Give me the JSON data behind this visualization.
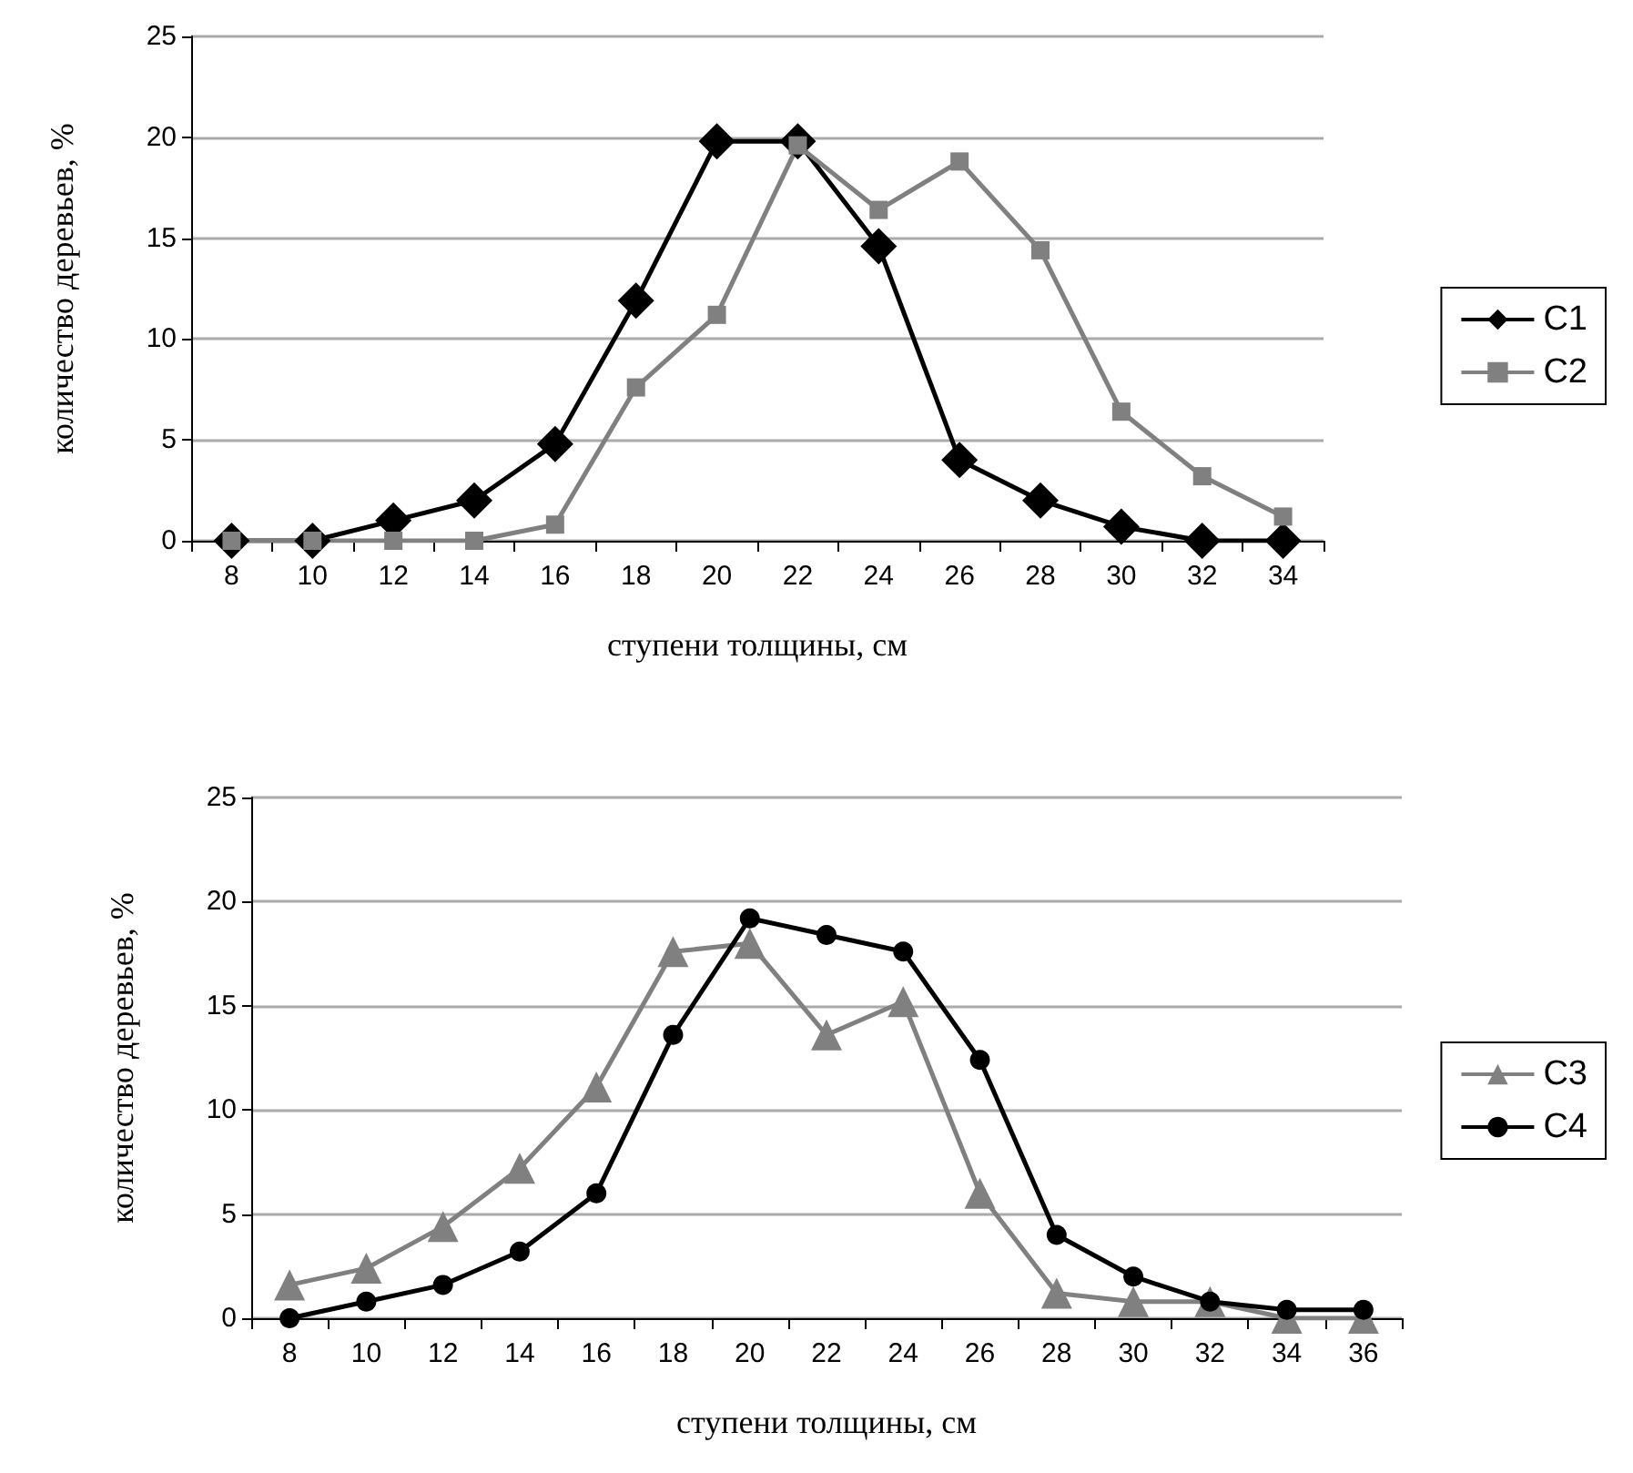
{
  "chart_data": [
    {
      "type": "line",
      "xlabel": "ступени толщины, см",
      "ylabel": "количество деревьев, %",
      "categories": [
        "8",
        "10",
        "12",
        "14",
        "16",
        "18",
        "20",
        "22",
        "24",
        "26",
        "28",
        "30",
        "32",
        "34"
      ],
      "series": [
        {
          "name": "C1",
          "color": "#000000",
          "marker": "diamond",
          "values": [
            0,
            0,
            1,
            2,
            4.8,
            11.9,
            19.8,
            19.8,
            14.6,
            4,
            2,
            0.7,
            0,
            0
          ]
        },
        {
          "name": "C2",
          "color": "#808080",
          "marker": "square",
          "values": [
            0,
            0,
            0,
            0,
            0.8,
            7.6,
            11.2,
            19.6,
            16.4,
            18.8,
            14.4,
            6.4,
            3.2,
            1.2
          ]
        }
      ],
      "ylim": [
        0,
        25
      ],
      "yticks": [
        0,
        5,
        10,
        15,
        20,
        25
      ],
      "grid": "y",
      "legend": "right",
      "line_style": "solid"
    },
    {
      "type": "line",
      "xlabel": "ступени толщины, см",
      "ylabel": "количество деревьев, %",
      "categories": [
        "8",
        "10",
        "12",
        "14",
        "16",
        "18",
        "20",
        "22",
        "24",
        "26",
        "28",
        "30",
        "32",
        "34",
        "36"
      ],
      "series": [
        {
          "name": "C3",
          "color": "#808080",
          "marker": "triangle",
          "values": [
            1.6,
            2.4,
            4.4,
            7.2,
            11.1,
            17.6,
            18,
            13.6,
            15.2,
            6,
            1.2,
            0.8,
            0.8,
            0,
            0
          ]
        },
        {
          "name": "C4",
          "color": "#000000",
          "marker": "circle",
          "values": [
            0,
            0.8,
            1.6,
            3.2,
            6,
            13.6,
            19.2,
            18.4,
            17.6,
            12.4,
            4,
            2,
            0.8,
            0.4,
            0.4
          ]
        }
      ],
      "ylim": [
        0,
        25
      ],
      "yticks": [
        0,
        5,
        10,
        15,
        20,
        25
      ],
      "grid": "y",
      "legend": "right",
      "line_style": "solid"
    }
  ]
}
